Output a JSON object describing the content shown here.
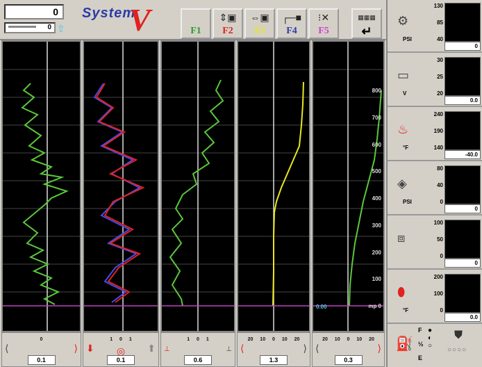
{
  "header": {
    "counter": "0",
    "sub_counter": "0",
    "logo_text": "System",
    "logo_v": "V"
  },
  "fkeys": [
    {
      "label": "F1",
      "color": "#2e9d2e",
      "icon": "blank"
    },
    {
      "label": "F2",
      "color": "#e0231e",
      "icon": "vertical-arrows-icon"
    },
    {
      "label": "F3",
      "color": "#e8e81e",
      "icon": "horizontal-arrows-icon"
    },
    {
      "label": "F4",
      "color": "#2b3da8",
      "icon": "bracket-icon"
    },
    {
      "label": "F5",
      "color": "#d23fd2",
      "icon": "traffic-light-icon"
    },
    {
      "label": "",
      "color": "#222222",
      "icon": "keyboard-enter-icon"
    }
  ],
  "channels": [
    {
      "footer_value": "0.1",
      "tick_labels": "0"
    },
    {
      "footer_value": "0.1",
      "tick_labels": "1   0   1"
    },
    {
      "footer_value": "0.6",
      "tick_labels": "1   0   1"
    },
    {
      "footer_value": "1.3",
      "tick_labels": "20 10 0 10 20"
    },
    {
      "footer_value": "0.3",
      "tick_labels": "20 10 0 10 20"
    }
  ],
  "depth_axis": {
    "labels": [
      "800",
      "700",
      "600",
      "500",
      "400",
      "300",
      "200",
      "100",
      "mp 0"
    ],
    "left_readout": "0.00"
  },
  "gauges": [
    {
      "unit": "PSI",
      "scale": [
        "130",
        "85",
        "40"
      ],
      "value": "0",
      "icon": "pressure-icon"
    },
    {
      "unit": "V",
      "scale": [
        "30",
        "25",
        "20"
      ],
      "value": "0.0",
      "icon": "battery-icon"
    },
    {
      "unit": "°F",
      "scale": [
        "240",
        "190",
        "140"
      ],
      "value": "-40.0",
      "icon": "thermometer-icon"
    },
    {
      "unit": "PSI",
      "scale": [
        "80",
        "40",
        "0"
      ],
      "value": "0",
      "icon": "oil-pressure-icon"
    },
    {
      "unit": "",
      "scale": [
        "100",
        "50",
        "0"
      ],
      "value": "0",
      "icon": "percent-icon"
    },
    {
      "unit": "°F",
      "scale": [
        "200",
        "100",
        "0"
      ],
      "value": "0.0",
      "icon": "temperature-drop-icon"
    }
  ],
  "fuel": {
    "full": "F",
    "half": "½",
    "empty": "E",
    "icon": "fuel-pump-icon",
    "lights_icon": "indicator-lights-icon"
  },
  "colors": {
    "trace_green": "#5ac83a",
    "trace_red": "#e0231e",
    "trace_blue": "#4a4ae8",
    "trace_yellow": "#e8e81e",
    "baseline": "#c040c0",
    "depth_label": "#dddddd"
  }
}
